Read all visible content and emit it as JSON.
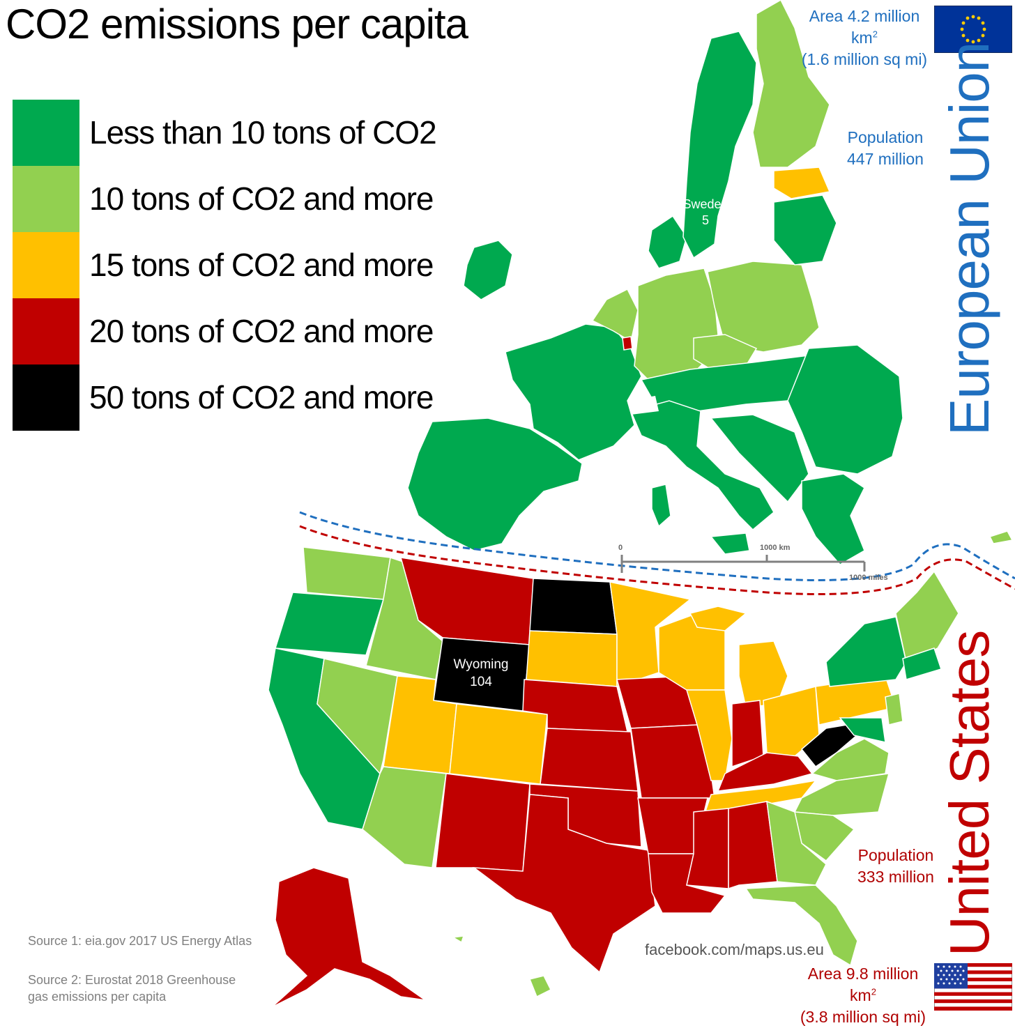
{
  "title": "CO2 emissions per capita",
  "colors": {
    "lt10": "#00a94f",
    "ge10": "#92d050",
    "ge15": "#ffc000",
    "ge20": "#c00000",
    "ge50": "#000000",
    "eu_blue": "#1f6fbf",
    "us_red": "#b00000",
    "flag_eu_bg": "#003399",
    "flag_eu_star": "#ffcc00"
  },
  "legend": [
    {
      "label": "Less than 10 tons of CO2",
      "color": "#00a94f"
    },
    {
      "label": "10 tons of CO2 and more",
      "color": "#92d050"
    },
    {
      "label": "15 tons of CO2 and more",
      "color": "#ffc000"
    },
    {
      "label": "20 tons of CO2 and more",
      "color": "#c00000"
    },
    {
      "label": "50 tons of CO2 and more",
      "color": "#000000"
    }
  ],
  "eu": {
    "name": "European Union",
    "area_line1": "Area 4.2 million km",
    "area_sup": "2",
    "area_line2": "(1.6 million sq mi)",
    "pop_line1": "Population",
    "pop_line2": "447 million",
    "flag_icon": "eu-flag-icon"
  },
  "us": {
    "name": "United States",
    "area_line1": "Area 9.8 million km",
    "area_sup": "2",
    "area_line2": "(3.8 million sq mi)",
    "pop_line1": "Population",
    "pop_line2": "333 million",
    "flag_icon": "us-flag-icon"
  },
  "labels": {
    "sweden_name": "Sweden",
    "sweden_value": "5",
    "wyoming_name": "Wyoming",
    "wyoming_value": "104"
  },
  "scale": {
    "zero": "0",
    "km": "1000 km",
    "miles": "1000 miles"
  },
  "sources": {
    "source1": "Source 1: eia.gov 2017 US Energy Atlas",
    "source2_line1": "Source 2: Eurostat 2018 Greenhouse",
    "source2_line2": "gas emissions per capita"
  },
  "credit": "facebook.com/maps.us.eu"
}
